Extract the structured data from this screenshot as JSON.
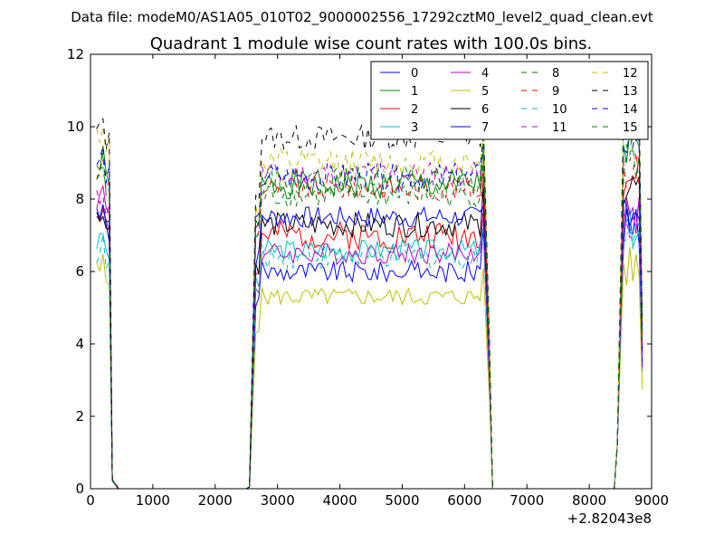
{
  "chart_data": {
    "type": "line",
    "suptitle": "Data file: modeM0/AS1A05_010T02_9000002556_17292cztM0_level2_quad_clean.evt",
    "title": "Quadrant 1 module wise count rates with 100.0s bins.",
    "xlabel": "",
    "ylabel": "",
    "x_offset_label": "+2.82043e8",
    "xlim": [
      0,
      9000
    ],
    "ylim": [
      0,
      12
    ],
    "xticks": [
      0,
      1000,
      2000,
      3000,
      4000,
      5000,
      6000,
      7000,
      8000,
      9000
    ],
    "yticks": [
      0,
      2,
      4,
      6,
      8,
      10,
      12
    ],
    "xtick_labels": [
      "0",
      "1000",
      "2000",
      "3000",
      "4000",
      "5000",
      "6000",
      "7000",
      "8000",
      "9000"
    ],
    "ytick_labels": [
      "0",
      "2",
      "4",
      "6",
      "8",
      "10",
      "12"
    ],
    "grid": false,
    "legend_position": "top-right",
    "legend_columns": 4,
    "series": [
      {
        "name": "0",
        "color": "#0000ff",
        "dash": "solid",
        "low": 0.22,
        "base": 6.0,
        "spread": 0.3,
        "early": 7.4,
        "late": 7.2
      },
      {
        "name": "1",
        "color": "#008000",
        "dash": "solid",
        "low": 0.25,
        "base": 8.4,
        "spread": 0.4,
        "early": 8.9,
        "late": 9.4
      },
      {
        "name": "2",
        "color": "#ff0000",
        "dash": "solid",
        "low": 0.24,
        "base": 7.0,
        "spread": 0.4,
        "early": 7.6,
        "late": 8.6
      },
      {
        "name": "3",
        "color": "#00bfbf",
        "dash": "solid",
        "low": 0.23,
        "base": 6.6,
        "spread": 0.3,
        "early": 6.8,
        "late": 7.2
      },
      {
        "name": "4",
        "color": "#bf00bf",
        "dash": "solid",
        "low": 0.22,
        "base": 6.5,
        "spread": 0.3,
        "early": 8.0,
        "late": 7.6
      },
      {
        "name": "5",
        "color": "#bfbf00",
        "dash": "solid",
        "low": 0.2,
        "base": 5.3,
        "spread": 0.25,
        "early": 6.0,
        "late": 6.1
      },
      {
        "name": "6",
        "color": "#000000",
        "dash": "solid",
        "low": 0.22,
        "base": 7.3,
        "spread": 0.35,
        "early": 7.5,
        "late": 8.3
      },
      {
        "name": "7",
        "color": "#0000ff",
        "dash": "solid",
        "low": 0.22,
        "base": 7.5,
        "spread": 0.3,
        "early": 7.7,
        "late": 7.8
      },
      {
        "name": "8",
        "color": "#008000",
        "dash": "dashed",
        "low": 0.24,
        "base": 8.1,
        "spread": 0.35,
        "early": 8.6,
        "late": 9.0
      },
      {
        "name": "9",
        "color": "#ff0000",
        "dash": "dashed",
        "low": 0.25,
        "base": 8.3,
        "spread": 0.35,
        "early": 8.7,
        "late": 8.8
      },
      {
        "name": "10",
        "color": "#00bfbf",
        "dash": "dashed",
        "low": 0.22,
        "base": 6.4,
        "spread": 0.35,
        "early": 6.5,
        "late": 7.2
      },
      {
        "name": "11",
        "color": "#bf00bf",
        "dash": "dashed",
        "low": 0.23,
        "base": 8.7,
        "spread": 0.35,
        "early": 8.0,
        "late": 7.4
      },
      {
        "name": "12",
        "color": "#bfbf00",
        "dash": "dashed",
        "low": 0.26,
        "base": 9.0,
        "spread": 0.4,
        "early": 9.8,
        "late": 10.3
      },
      {
        "name": "13",
        "color": "#000000",
        "dash": "dashed",
        "low": 0.26,
        "base": 9.7,
        "spread": 0.35,
        "early": 9.9,
        "late": 10.2
      },
      {
        "name": "14",
        "color": "#0000ff",
        "dash": "dashed",
        "low": 0.25,
        "base": 8.6,
        "spread": 0.4,
        "early": 9.0,
        "late": 9.7
      },
      {
        "name": "15",
        "color": "#008000",
        "dash": "dashed",
        "low": 0.25,
        "base": 8.5,
        "spread": 0.4,
        "early": 8.7,
        "late": 9.6
      }
    ],
    "segments": [
      {
        "start": 100,
        "end": 300,
        "step": 50
      },
      {
        "start": 2550,
        "end": 6400,
        "step": 50
      },
      {
        "start": 8450,
        "end": 8850,
        "step": 50
      }
    ]
  }
}
